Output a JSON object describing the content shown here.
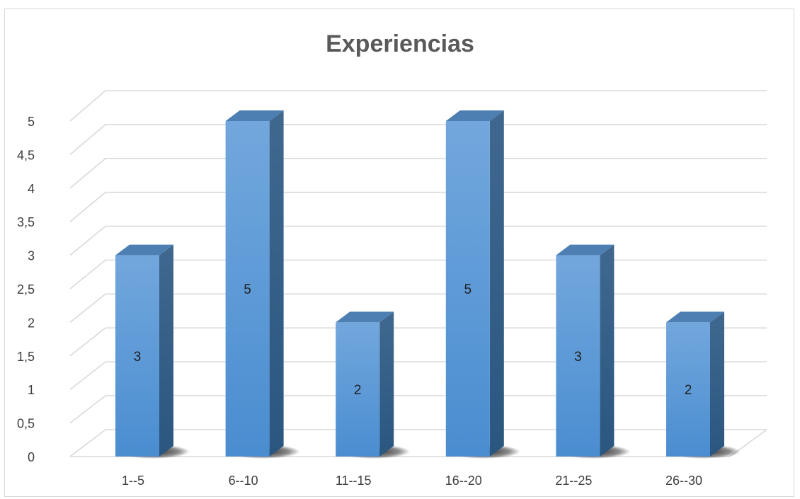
{
  "chart_data": {
    "type": "bar",
    "title": "Experiencias",
    "categories": [
      "1--5",
      "6--10",
      "11--15",
      "16--20",
      "21--25",
      "26--30"
    ],
    "values": [
      3,
      5,
      2,
      5,
      3,
      2
    ],
    "ylim": [
      0,
      5
    ],
    "yticks": [
      "0",
      "0,5",
      "1",
      "1,5",
      "2",
      "2,5",
      "3",
      "3,5",
      "4",
      "4,5",
      "5"
    ],
    "ytick_values": [
      0,
      0.5,
      1,
      1.5,
      2,
      2.5,
      3,
      3.5,
      4,
      4.5,
      5
    ],
    "data_labels": [
      "3",
      "5",
      "2",
      "5",
      "3",
      "2"
    ],
    "grid": true,
    "legend": "none",
    "colors": {
      "bar_front": "#5b9bd5",
      "bar_front_light": "#6fa8dc",
      "bar_side": "#2e5e8c",
      "bar_top": "#4d7fb3",
      "grid": "#d9d9d9",
      "title": "#595959",
      "tick": "#404040"
    }
  }
}
